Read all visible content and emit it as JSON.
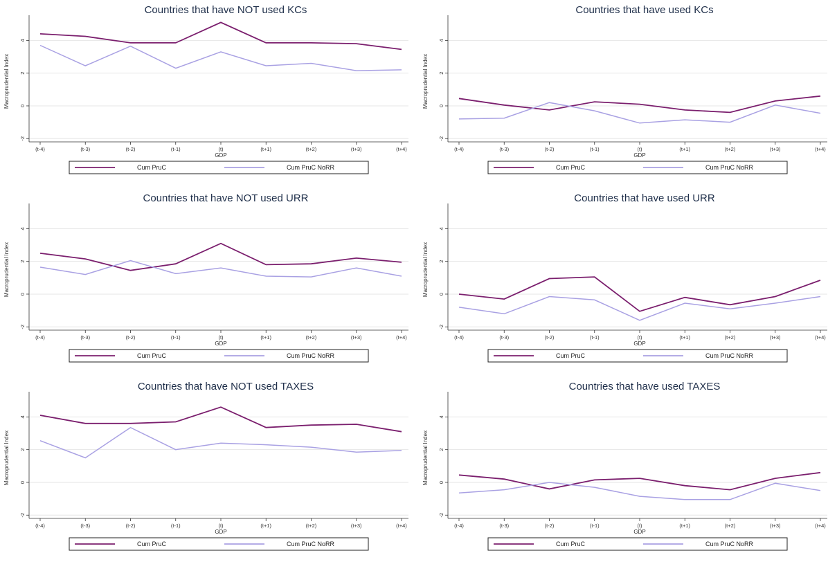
{
  "colors": {
    "cum_pruc": "#7b1f6e",
    "cum_pruc_norr": "#a9a1e3",
    "title": "#1f2f4a",
    "grid": "#e6e6e6"
  },
  "chart_data": [
    {
      "type": "line",
      "title": "Countries that have NOT used KCs",
      "xlabel": "GDP",
      "ylabel": "Macroprudential Index",
      "categories": [
        "(t-4)",
        "(t-3)",
        "(t-2)",
        "(t-1)",
        "(t)",
        "(t+1)",
        "(t+2)",
        "(t+3)",
        "(t+4)"
      ],
      "yticks": [
        "-2",
        "0",
        "2",
        "4"
      ],
      "ylim": [
        -2.2,
        5.2
      ],
      "legend": "bottom",
      "grid": true,
      "series": [
        {
          "name": "Cum PruC",
          "values": [
            4.4,
            4.25,
            3.85,
            3.85,
            5.1,
            3.85,
            3.85,
            3.8,
            3.45
          ]
        },
        {
          "name": "Cum PruC NoRR",
          "values": [
            3.7,
            2.45,
            3.65,
            2.3,
            3.3,
            2.45,
            2.6,
            2.15,
            2.2
          ]
        }
      ]
    },
    {
      "type": "line",
      "title": "Countries that have used KCs",
      "xlabel": "GDP",
      "ylabel": "Macroprudential Index",
      "categories": [
        "(t-4)",
        "(t-3)",
        "(t-2)",
        "(t-1)",
        "(t)",
        "(t+1)",
        "(t+2)",
        "(t+3)",
        "(t+4)"
      ],
      "yticks": [
        "-2",
        "0",
        "2",
        "4"
      ],
      "ylim": [
        -2.2,
        5.2
      ],
      "legend": "bottom",
      "grid": true,
      "series": [
        {
          "name": "Cum PruC",
          "values": [
            0.45,
            0.05,
            -0.25,
            0.25,
            0.1,
            -0.25,
            -0.4,
            0.3,
            0.6
          ]
        },
        {
          "name": "Cum PruC NoRR",
          "values": [
            -0.8,
            -0.75,
            0.2,
            -0.3,
            -1.05,
            -0.85,
            -1.0,
            0.05,
            -0.45
          ]
        }
      ]
    },
    {
      "type": "line",
      "title": "Countries that have NOT used URR",
      "xlabel": "GDP",
      "ylabel": "Macroprudential Index",
      "categories": [
        "(t-4)",
        "(t-3)",
        "(t-2)",
        "(t-1)",
        "(t)",
        "(t+1)",
        "(t+2)",
        "(t+3)",
        "(t+4)"
      ],
      "yticks": [
        "-2",
        "0",
        "2",
        "4"
      ],
      "ylim": [
        -2.2,
        5.2
      ],
      "legend": "bottom",
      "grid": true,
      "series": [
        {
          "name": "Cum PruC",
          "values": [
            2.5,
            2.15,
            1.45,
            1.85,
            3.1,
            1.8,
            1.85,
            2.2,
            1.95
          ]
        },
        {
          "name": "Cum PruC NoRR",
          "values": [
            1.65,
            1.2,
            2.05,
            1.25,
            1.6,
            1.1,
            1.05,
            1.6,
            1.1
          ]
        }
      ]
    },
    {
      "type": "line",
      "title": "Countries that have used URR",
      "xlabel": "GDP",
      "ylabel": "Macroprudential Index",
      "categories": [
        "(t-4)",
        "(t-3)",
        "(t-2)",
        "(t-1)",
        "(t)",
        "(t+1)",
        "(t+2)",
        "(t+3)",
        "(t+4)"
      ],
      "yticks": [
        "-2",
        "0",
        "2",
        "4"
      ],
      "ylim": [
        -2.2,
        5.2
      ],
      "legend": "bottom",
      "grid": true,
      "series": [
        {
          "name": "Cum PruC",
          "values": [
            0.0,
            -0.3,
            0.95,
            1.05,
            -1.05,
            -0.2,
            -0.65,
            -0.15,
            0.85
          ]
        },
        {
          "name": "Cum PruC NoRR",
          "values": [
            -0.8,
            -1.2,
            -0.15,
            -0.35,
            -1.6,
            -0.55,
            -0.9,
            -0.55,
            -0.15
          ]
        }
      ]
    },
    {
      "type": "line",
      "title": "Countries that have NOT used TAXES",
      "xlabel": "GDP",
      "ylabel": "Macroprudential Index",
      "categories": [
        "(t-4)",
        "(t-3)",
        "(t-2)",
        "(t-1)",
        "(t)",
        "(t+1)",
        "(t+2)",
        "(t+3)",
        "(t+4)"
      ],
      "yticks": [
        "-2",
        "0",
        "2",
        "4"
      ],
      "ylim": [
        -2.2,
        5.2
      ],
      "legend": "bottom",
      "grid": true,
      "series": [
        {
          "name": "Cum PruC",
          "values": [
            4.1,
            3.6,
            3.6,
            3.7,
            4.6,
            3.35,
            3.5,
            3.55,
            3.1
          ]
        },
        {
          "name": "Cum PruC NoRR",
          "values": [
            2.55,
            1.5,
            3.35,
            2.0,
            2.4,
            2.3,
            2.15,
            1.85,
            1.95
          ]
        }
      ]
    },
    {
      "type": "line",
      "title": "Countries that have used TAXES",
      "xlabel": "GDP",
      "ylabel": "Macroprudential Index",
      "categories": [
        "(t-4)",
        "(t-3)",
        "(t-2)",
        "(t-1)",
        "(t)",
        "(t+1)",
        "(t+2)",
        "(t+3)",
        "(t+4)"
      ],
      "yticks": [
        "-2",
        "0",
        "2",
        "4"
      ],
      "ylim": [
        -2.2,
        5.2
      ],
      "legend": "bottom",
      "grid": true,
      "series": [
        {
          "name": "Cum PruC",
          "values": [
            0.45,
            0.2,
            -0.4,
            0.15,
            0.25,
            -0.2,
            -0.45,
            0.25,
            0.6
          ]
        },
        {
          "name": "Cum PruC NoRR",
          "values": [
            -0.65,
            -0.45,
            0.0,
            -0.3,
            -0.85,
            -1.05,
            -1.05,
            -0.05,
            -0.5
          ]
        }
      ]
    }
  ]
}
